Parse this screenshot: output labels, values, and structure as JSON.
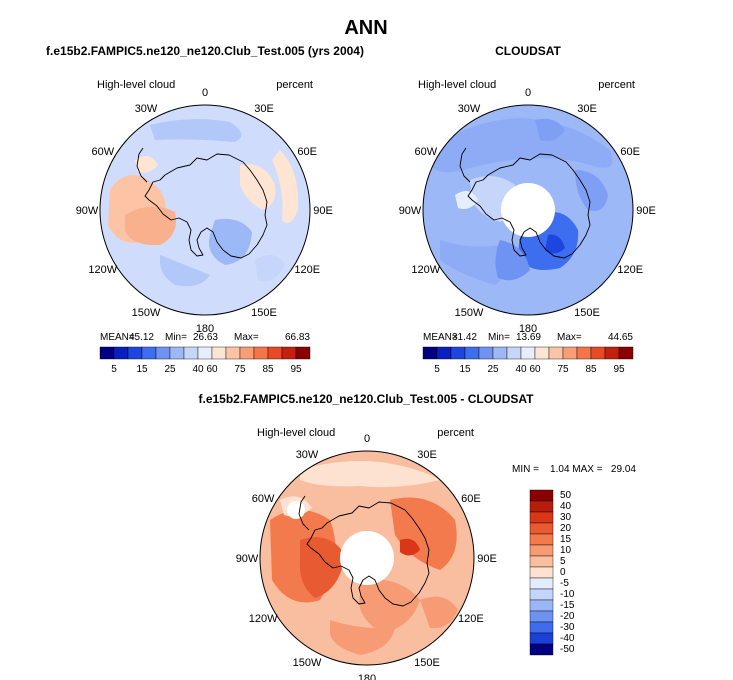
{
  "figure": {
    "main_title": "ANN",
    "panels": [
      {
        "id": "model",
        "title": "f.e15b2.FAMPIC5.ne120_ne120.Club_Test.005 (yrs 2004)",
        "variable": "High-level cloud",
        "units": "percent",
        "stats": {
          "mean_label": "MEAN=",
          "mean": "45.12",
          "min_label": "Min=",
          "min": "26.63",
          "max_label": "Max=",
          "max": "66.83"
        },
        "colorbar_ticks": [
          "5",
          "15",
          "25",
          "40",
          "60",
          "75",
          "85",
          "95"
        ]
      },
      {
        "id": "obs",
        "title": "CLOUDSAT",
        "variable": "High-level cloud",
        "units": "percent",
        "stats": {
          "mean_label": "MEAN=",
          "mean": "31.42",
          "min_label": "Min=",
          "min": "13.69",
          "max_label": "Max=",
          "max": "44.65"
        },
        "colorbar_ticks": [
          "5",
          "15",
          "25",
          "40",
          "60",
          "75",
          "85",
          "95"
        ]
      },
      {
        "id": "diff",
        "title": "f.e15b2.FAMPIC5.ne120_ne120.Club_Test.005 - CLOUDSAT",
        "variable": "High-level cloud",
        "units": "percent",
        "minmax_text": "MIN =    1.04 MAX =   29.04",
        "colorbar_ticks": [
          "50",
          "40",
          "30",
          "20",
          "15",
          "10",
          "5",
          "0",
          "-5",
          "-10",
          "-15",
          "-20",
          "-30",
          "-40",
          "-50"
        ]
      }
    ],
    "longitude_labels": [
      "0",
      "30E",
      "60E",
      "90E",
      "120E",
      "150E",
      "180",
      "150W",
      "120W",
      "90W",
      "60W",
      "30W"
    ],
    "colors": {
      "full_scale": [
        "#000080",
        "#0a1fbf",
        "#1f45e0",
        "#3d6ef0",
        "#6f93f3",
        "#9db8f7",
        "#c6d6fa",
        "#e6eefd",
        "#fde4d3",
        "#fcc3a4",
        "#f99d75",
        "#f57548",
        "#e84a26",
        "#c4200f",
        "#8b0000"
      ],
      "diff_scale": [
        "#8b0000",
        "#b81c0c",
        "#d9361a",
        "#e85a31",
        "#f37a4c",
        "#f69b74",
        "#f9bd9f",
        "#fde2d2",
        "#e3ecfd",
        "#c3d5fa",
        "#9bb6f6",
        "#6e92f2",
        "#3f6cee",
        "#1c3fd8",
        "#000080"
      ],
      "land_outline": "#000000",
      "hole": "#ffffff"
    }
  }
}
